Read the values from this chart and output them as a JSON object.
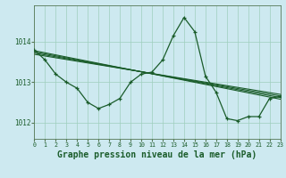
{
  "background_color": "#cde9f0",
  "grid_color": "#9ecfbd",
  "line_color": "#1a5c2a",
  "xlabel": "Graphe pression niveau de la mer (hPa)",
  "xlabel_fontsize": 7,
  "ylabel_ticks": [
    1012,
    1013,
    1014
  ],
  "xlim": [
    0,
    23
  ],
  "ylim": [
    1011.6,
    1014.9
  ],
  "main_y": [
    1013.8,
    1013.55,
    1013.2,
    1013.0,
    1012.85,
    1012.5,
    1012.35,
    1012.45,
    1012.6,
    1013.0,
    1013.2,
    1013.25,
    1013.55,
    1014.15,
    1014.6,
    1014.25,
    1013.15,
    1012.75,
    1012.1,
    1012.05,
    1012.15,
    1012.15,
    1012.6,
    1012.65
  ],
  "trend_lines": [
    {
      "x0": 0,
      "y0": 1013.78,
      "x1": 23,
      "y1": 1012.58
    },
    {
      "x0": 0,
      "y0": 1013.75,
      "x1": 23,
      "y1": 1012.62
    },
    {
      "x0": 0,
      "y0": 1013.72,
      "x1": 23,
      "y1": 1012.66
    },
    {
      "x0": 0,
      "y0": 1013.69,
      "x1": 23,
      "y1": 1012.7
    }
  ]
}
